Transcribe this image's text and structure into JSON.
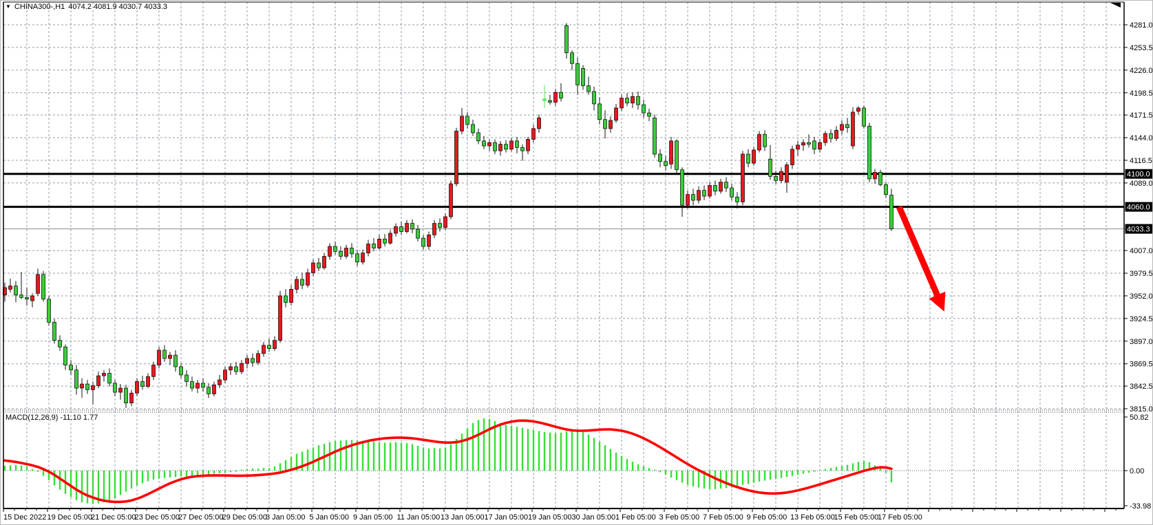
{
  "title_bar": {
    "symbol": "CHINA300-,H1",
    "ohlc": "4074.2 4081.9 4030.7 4033.3"
  },
  "price_axis": {
    "tick_labels": [
      "4281.0",
      "4253.5",
      "4226.0",
      "4198.5",
      "4171.5",
      "4144.0",
      "4116.5",
      "4089.0",
      "4007.0",
      "3979.5",
      "3952.0",
      "3924.5",
      "3897.0",
      "3869.5",
      "3842.5",
      "3815.0"
    ],
    "badges": [
      {
        "label": "4100.0",
        "value": 4100.0
      },
      {
        "label": "4060.0",
        "value": 4060.0
      },
      {
        "label": "4033.3",
        "value": 4033.3
      }
    ]
  },
  "time_axis": {
    "labels": [
      "15 Dec 2022",
      "19 Dec 05:00",
      "21 Dec 05:00",
      "23 Dec 05:00",
      "27 Dec 05:00",
      "29 Dec 05:00",
      "3 Jan 05:00",
      "5 Jan 05:00",
      "9 Jan 05:00",
      "11 Jan 05:00",
      "13 Jan 05:00",
      "17 Jan 05:00",
      "19 Jan 05:00",
      "30 Jan 05:00",
      "1 Feb 05:00",
      "3 Feb 05:00",
      "7 Feb 05:00",
      "9 Feb 05:00",
      "13 Feb 05:00",
      "15 Feb 05:00",
      "17 Feb 05:00"
    ]
  },
  "macd": {
    "label": "MACD(12,26,9) -11.10 1.77",
    "params": "12,26,9",
    "value": -11.1,
    "signal_value": 1.77,
    "scale_labels": [
      "50.82",
      "0.00",
      "-33.98"
    ],
    "scale_values": [
      50.82,
      0.0,
      -33.98
    ]
  },
  "chart_data": {
    "type": "candlestick",
    "symbol": "CHINA300",
    "timeframe": "H1",
    "y_axis": {
      "min": 3815.0,
      "max": 4281.0,
      "ticks": [
        4281.0,
        4253.5,
        4226.0,
        4198.5,
        4171.5,
        4144.0,
        4116.5,
        4089.0,
        4007.0,
        3979.5,
        3952.0,
        3924.5,
        3897.0,
        3869.5,
        3842.5,
        3815.0
      ]
    },
    "levels": [
      4100.0,
      4060.0
    ],
    "current_price": 4033.3,
    "last_candle": {
      "open": 4074.2,
      "high": 4081.9,
      "low": 4030.7,
      "close": 4033.3
    },
    "colors": {
      "bull": "#e8191f",
      "bear": "#3ccc3c",
      "wick": "#111111",
      "doji_highlight": "#55e655",
      "grid": "#8d9cab",
      "level": "#000000",
      "price_line": "#888888",
      "arrow": "#ff0000",
      "macd_hist": "#35e035",
      "macd_signal": "#ff0000",
      "badge_bg": "#000000",
      "badge_text": "#ffffff"
    },
    "candles": [
      [
        3953,
        3968,
        3945,
        3962
      ],
      [
        3960,
        3973,
        3956,
        3964
      ],
      [
        3964,
        3970,
        3944,
        3953
      ],
      [
        3953,
        3981,
        3948,
        3950
      ],
      [
        3950,
        3962,
        3940,
        3948
      ],
      [
        3946,
        3955,
        3938,
        3952
      ],
      [
        3955,
        3985,
        3952,
        3978
      ],
      [
        3978,
        3982,
        3945,
        3948
      ],
      [
        3948,
        3952,
        3916,
        3920
      ],
      [
        3920,
        3924,
        3894,
        3898
      ],
      [
        3898,
        3904,
        3885,
        3890
      ],
      [
        3890,
        3893,
        3862,
        3868
      ],
      [
        3868,
        3874,
        3856,
        3862
      ],
      [
        3862,
        3868,
        3832,
        3840
      ],
      [
        3840,
        3852,
        3828,
        3845
      ],
      [
        3845,
        3850,
        3833,
        3838
      ],
      [
        3838,
        3848,
        3820,
        3843
      ],
      [
        3843,
        3860,
        3840,
        3855
      ],
      [
        3855,
        3862,
        3848,
        3858
      ],
      [
        3858,
        3864,
        3842,
        3846
      ],
      [
        3846,
        3850,
        3830,
        3835
      ],
      [
        3835,
        3845,
        3826,
        3840
      ],
      [
        3840,
        3844,
        3816,
        3822
      ],
      [
        3822,
        3838,
        3818,
        3834
      ],
      [
        3834,
        3852,
        3830,
        3848
      ],
      [
        3848,
        3855,
        3838,
        3842
      ],
      [
        3842,
        3858,
        3840,
        3854
      ],
      [
        3854,
        3872,
        3850,
        3868
      ],
      [
        3868,
        3890,
        3864,
        3886
      ],
      [
        3886,
        3892,
        3872,
        3876
      ],
      [
        3876,
        3884,
        3868,
        3880
      ],
      [
        3880,
        3886,
        3860,
        3866
      ],
      [
        3866,
        3870,
        3852,
        3856
      ],
      [
        3856,
        3862,
        3842,
        3848
      ],
      [
        3848,
        3854,
        3836,
        3840
      ],
      [
        3840,
        3850,
        3834,
        3846
      ],
      [
        3846,
        3852,
        3836,
        3841
      ],
      [
        3841,
        3846,
        3828,
        3833
      ],
      [
        3833,
        3848,
        3830,
        3844
      ],
      [
        3844,
        3856,
        3840,
        3850
      ],
      [
        3850,
        3866,
        3846,
        3862
      ],
      [
        3862,
        3870,
        3856,
        3866
      ],
      [
        3866,
        3872,
        3856,
        3860
      ],
      [
        3860,
        3874,
        3857,
        3870
      ],
      [
        3870,
        3880,
        3864,
        3876
      ],
      [
        3876,
        3882,
        3866,
        3871
      ],
      [
        3871,
        3886,
        3868,
        3882
      ],
      [
        3882,
        3896,
        3878,
        3892
      ],
      [
        3892,
        3900,
        3884,
        3888
      ],
      [
        3888,
        3903,
        3885,
        3898
      ],
      [
        3898,
        3958,
        3895,
        3952
      ],
      [
        3952,
        3960,
        3938,
        3944
      ],
      [
        3944,
        3965,
        3940,
        3960
      ],
      [
        3960,
        3976,
        3955,
        3972
      ],
      [
        3972,
        3980,
        3960,
        3965
      ],
      [
        3965,
        3985,
        3962,
        3980
      ],
      [
        3980,
        3996,
        3976,
        3992
      ],
      [
        3992,
        3998,
        3982,
        3986
      ],
      [
        3986,
        4004,
        3984,
        4000
      ],
      [
        4000,
        4016,
        3996,
        4012
      ],
      [
        4012,
        4018,
        4002,
        4006
      ],
      [
        4006,
        4012,
        3996,
        4000
      ],
      [
        4000,
        4014,
        3997,
        4010
      ],
      [
        4010,
        4016,
        3998,
        4003
      ],
      [
        4003,
        4008,
        3988,
        3993
      ],
      [
        3993,
        4008,
        3990,
        4004
      ],
      [
        4004,
        4020,
        4000,
        4015
      ],
      [
        4015,
        4022,
        4006,
        4010
      ],
      [
        4010,
        4026,
        4008,
        4021
      ],
      [
        4021,
        4027,
        4012,
        4016
      ],
      [
        4016,
        4032,
        4014,
        4028
      ],
      [
        4028,
        4040,
        4024,
        4036
      ],
      [
        4036,
        4042,
        4026,
        4030
      ],
      [
        4030,
        4044,
        4028,
        4040
      ],
      [
        4040,
        4045,
        4028,
        4033
      ],
      [
        4033,
        4038,
        4018,
        4022
      ],
      [
        4022,
        4026,
        4008,
        4012
      ],
      [
        4012,
        4030,
        4008,
        4026
      ],
      [
        4026,
        4044,
        4022,
        4040
      ],
      [
        4040,
        4046,
        4030,
        4035
      ],
      [
        4035,
        4052,
        4032,
        4048
      ],
      [
        4048,
        4092,
        4045,
        4088
      ],
      [
        4088,
        4156,
        4085,
        4152
      ],
      [
        4152,
        4180,
        4148,
        4170
      ],
      [
        4170,
        4175,
        4155,
        4160
      ],
      [
        4160,
        4166,
        4146,
        4150
      ],
      [
        4150,
        4155,
        4136,
        4140
      ],
      [
        4140,
        4146,
        4130,
        4134
      ],
      [
        4134,
        4142,
        4128,
        4138
      ],
      [
        4138,
        4142,
        4124,
        4128
      ],
      [
        4128,
        4140,
        4122,
        4136
      ],
      [
        4136,
        4141,
        4126,
        4130
      ],
      [
        4130,
        4144,
        4127,
        4140
      ],
      [
        4140,
        4145,
        4125,
        4132
      ],
      [
        4132,
        4136,
        4116,
        4128
      ],
      [
        4128,
        4145,
        4124,
        4142
      ],
      [
        4142,
        4160,
        4138,
        4155
      ],
      [
        4155,
        4172,
        4150,
        4168
      ],
      [
        4191,
        4208,
        4180,
        4189,
        "lime"
      ],
      [
        4189,
        4196,
        4184,
        4187
      ],
      [
        4187,
        4203,
        4183,
        4199
      ],
      [
        4199,
        4210,
        4188,
        4192
      ],
      [
        4280,
        4283,
        4240,
        4247
      ],
      [
        4247,
        4250,
        4226,
        4234
      ],
      [
        4234,
        4241,
        4196,
        4208
      ],
      [
        4228,
        4232,
        4202,
        4207
      ],
      [
        4207,
        4218,
        4196,
        4200
      ],
      [
        4200,
        4206,
        4177,
        4185
      ],
      [
        4185,
        4193,
        4160,
        4166
      ],
      [
        4166,
        4177,
        4143,
        4155
      ],
      [
        4155,
        4170,
        4150,
        4165
      ],
      [
        4165,
        4185,
        4162,
        4180
      ],
      [
        4180,
        4196,
        4176,
        4192
      ],
      [
        4192,
        4198,
        4182,
        4186
      ],
      [
        4186,
        4199,
        4180,
        4194
      ],
      [
        4194,
        4200,
        4178,
        4184
      ],
      [
        4184,
        4190,
        4168,
        4174
      ],
      [
        4174,
        4179,
        4164,
        4170
      ],
      [
        4168,
        4172,
        4120,
        4124
      ],
      [
        4124,
        4130,
        4108,
        4115
      ],
      [
        4115,
        4122,
        4104,
        4110
      ],
      [
        4112,
        4145,
        4106,
        4140
      ],
      [
        4140,
        4142,
        4100,
        4105
      ],
      [
        4105,
        4108,
        4048,
        4062
      ],
      [
        4062,
        4080,
        4058,
        4075
      ],
      [
        4075,
        4082,
        4062,
        4068
      ],
      [
        4068,
        4085,
        4064,
        4080
      ],
      [
        4080,
        4086,
        4068,
        4073
      ],
      [
        4073,
        4090,
        4070,
        4086
      ],
      [
        4086,
        4092,
        4074,
        4079
      ],
      [
        4079,
        4094,
        4076,
        4090
      ],
      [
        4090,
        4096,
        4078,
        4083
      ],
      [
        4083,
        4088,
        4068,
        4072
      ],
      [
        4072,
        4078,
        4058,
        4066
      ],
      [
        4066,
        4128,
        4062,
        4124
      ],
      [
        4124,
        4130,
        4108,
        4113
      ],
      [
        4113,
        4133,
        4110,
        4129
      ],
      [
        4129,
        4152,
        4126,
        4148
      ],
      [
        4148,
        4153,
        4128,
        4133
      ],
      [
        4118,
        4135,
        4093,
        4097
      ],
      [
        4097,
        4104,
        4088,
        4092
      ],
      [
        4092,
        4108,
        4089,
        4103
      ],
      [
        4090,
        4114,
        4077,
        4111
      ],
      [
        4111,
        4134,
        4106,
        4130
      ],
      [
        4130,
        4140,
        4122,
        4135
      ],
      [
        4135,
        4142,
        4128,
        4138
      ],
      [
        4138,
        4148,
        4132,
        4136
      ],
      [
        4140,
        4145,
        4124,
        4130
      ],
      [
        4130,
        4142,
        4126,
        4138
      ],
      [
        4138,
        4152,
        4134,
        4149
      ],
      [
        4149,
        4154,
        4138,
        4143
      ],
      [
        4143,
        4158,
        4140,
        4153
      ],
      [
        4153,
        4165,
        4148,
        4160
      ],
      [
        4160,
        4168,
        4150,
        4156
      ],
      [
        4134,
        4181,
        4130,
        4175
      ],
      [
        4176,
        4182,
        4172,
        4180
      ],
      [
        4180,
        4183,
        4155,
        4158
      ],
      [
        4158,
        4162,
        4090,
        4094
      ],
      [
        4094,
        4106,
        4088,
        4102
      ],
      [
        4102,
        4105,
        4085,
        4087
      ],
      [
        4087,
        4090,
        4071,
        4075
      ],
      [
        4074.2,
        4081.9,
        4030.7,
        4033.3
      ]
    ],
    "macd_histogram": [
      4.5,
      5,
      5.5,
      5,
      4,
      1.5,
      -1,
      -5,
      -9,
      -14,
      -18,
      -22,
      -25,
      -28,
      -30,
      -31,
      -31.5,
      -31,
      -30,
      -28,
      -26,
      -23,
      -20,
      -17,
      -14,
      -12,
      -10,
      -8.5,
      -7.5,
      -7,
      -6.5,
      -6,
      -5.5,
      -5.5,
      -5,
      -4.5,
      -4,
      -3.5,
      -3,
      -2.5,
      -2,
      -1.5,
      -1,
      1,
      1.5,
      2,
      2,
      2.5,
      2.5,
      4,
      7,
      10,
      13,
      16,
      18,
      20,
      22,
      24,
      25.5,
      27,
      28,
      28.5,
      29,
      29,
      28.5,
      28,
      28,
      27.5,
      27,
      26.5,
      26.5,
      27,
      26.5,
      26,
      25,
      23.5,
      22,
      21,
      21.5,
      21,
      22,
      25,
      30,
      35,
      40,
      45,
      48,
      49.5,
      49,
      47,
      45,
      43.5,
      42.5,
      41.5,
      40.5,
      39.5,
      38.5,
      37.5,
      36.5,
      36,
      35.5,
      36,
      37.5,
      38.5,
      38,
      36.5,
      34,
      31,
      27.5,
      24,
      20.5,
      17,
      14,
      11,
      8.5,
      6,
      4,
      2.5,
      1,
      -1.5,
      -4,
      -6.5,
      -9,
      -11.5,
      -13.5,
      -15,
      -16,
      -17,
      -17.5,
      -17.5,
      -17,
      -16.5,
      -16,
      -15,
      -13.5,
      -12.5,
      -11.5,
      -10.5,
      -9.5,
      -8.5,
      -8,
      -7,
      -6,
      -5,
      -4,
      -3,
      -2,
      -1,
      0.5,
      1.5,
      2.5,
      3.5,
      4.5,
      5.5,
      7,
      8.5,
      9.5,
      8,
      5,
      2,
      -2,
      -11.1
    ],
    "macd_signal": [
      9.6,
      9,
      8.2,
      7.2,
      6.2,
      5,
      3.5,
      1.5,
      -1,
      -4,
      -7.5,
      -11,
      -14.5,
      -18,
      -21,
      -23.5,
      -25.5,
      -27.2,
      -28.4,
      -29.2,
      -29.6,
      -29.6,
      -29.2,
      -28.2,
      -26.6,
      -24.6,
      -22.2,
      -19.6,
      -17,
      -14.4,
      -12,
      -10,
      -8.2,
      -6.8,
      -5.8,
      -5.2,
      -4.8,
      -4.6,
      -4.5,
      -4.5,
      -4.6,
      -4.7,
      -4.8,
      -4.8,
      -4.7,
      -4.5,
      -4.2,
      -3.8,
      -3.3,
      -2.7,
      -1.8,
      -0.6,
      0.8,
      2.4,
      4.2,
      6.2,
      8.4,
      10.8,
      13.2,
      15.6,
      18,
      20.2,
      22.2,
      24,
      25.6,
      27,
      28.2,
      29.2,
      30,
      30.6,
      31,
      31.2,
      31.2,
      31,
      30.6,
      30,
      29.2,
      28.4,
      27.6,
      27,
      26.6,
      26.6,
      27,
      28,
      29.6,
      31.6,
      34,
      36.6,
      39.2,
      41.6,
      43.6,
      45.2,
      46.4,
      47.2,
      47.4,
      47.2,
      46.6,
      45.6,
      44.4,
      43,
      41.6,
      40.2,
      39,
      38.2,
      37.8,
      37.8,
      38,
      38.4,
      38.8,
      39,
      39,
      38.6,
      37.8,
      36.6,
      35,
      33,
      30.6,
      28,
      25.2,
      22.2,
      19,
      15.8,
      12.6,
      9.4,
      6.2,
      3.2,
      0.4,
      -2.2,
      -4.8,
      -7.2,
      -9.6,
      -11.8,
      -13.8,
      -15.6,
      -17.2,
      -18.6,
      -19.8,
      -20.7,
      -21.3,
      -21.6,
      -21.6,
      -21.3,
      -20.7,
      -19.8,
      -18.7,
      -17.4,
      -16,
      -14.5,
      -13,
      -11.4,
      -9.8,
      -8.2,
      -6.6,
      -5,
      -3.4,
      -1.8,
      -0.2,
      1.2,
      2.4,
      3.2,
      3,
      1.77
    ],
    "arrow": {
      "from_index": 162.4,
      "from_price": 4060,
      "to_index": 170.6,
      "to_price": 3933
    }
  }
}
